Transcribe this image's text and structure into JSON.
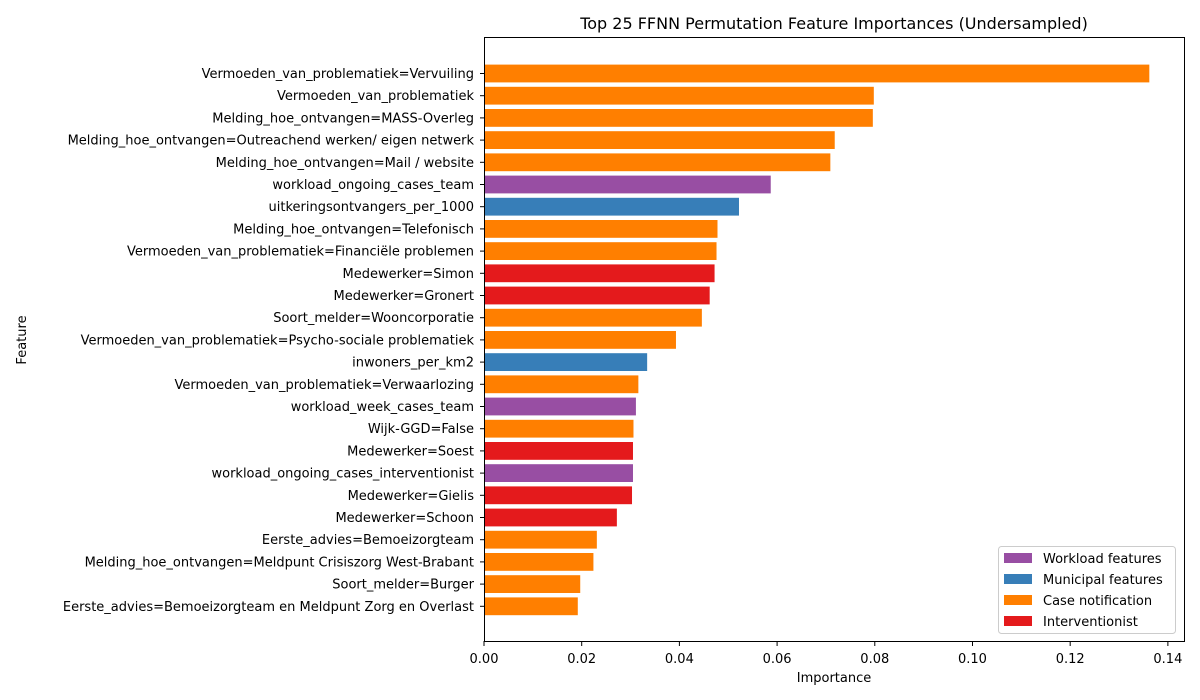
{
  "chart_data": {
    "type": "bar",
    "orientation": "horizontal",
    "title": "Top 25 FFNN Permutation Feature Importances (Undersampled)",
    "xlabel": "Importance",
    "ylabel": "Feature",
    "xlim": [
      0,
      0.1433
    ],
    "xticks": [
      "0.00",
      "0.02",
      "0.04",
      "0.06",
      "0.08",
      "0.10",
      "0.12",
      "0.14"
    ],
    "grid": false,
    "legend_position": "lower-right",
    "groups": {
      "workload": {
        "label": "Workload features",
        "color": "#984ea3"
      },
      "municipal": {
        "label": "Municipal features",
        "color": "#377eb8"
      },
      "case": {
        "label": "Case notification",
        "color": "#ff7f00"
      },
      "interventionist": {
        "label": "Interventionist",
        "color": "#e41a1c"
      }
    },
    "legend_order": [
      "workload",
      "municipal",
      "case",
      "interventionist"
    ],
    "bars": [
      {
        "feature": "Vermoeden_van_problematiek=Vervuiling",
        "value": 0.1362,
        "group": "case"
      },
      {
        "feature": "Vermoeden_van_problematiek",
        "value": 0.0798,
        "group": "case"
      },
      {
        "feature": "Melding_hoe_ontvangen=MASS-Overleg",
        "value": 0.0796,
        "group": "case"
      },
      {
        "feature": "Melding_hoe_ontvangen=Outreachend werken/ eigen netwerk",
        "value": 0.0718,
        "group": "case"
      },
      {
        "feature": "Melding_hoe_ontvangen=Mail / website",
        "value": 0.0709,
        "group": "case"
      },
      {
        "feature": "workload_ongoing_cases_team",
        "value": 0.0587,
        "group": "workload"
      },
      {
        "feature": "uitkeringsontvangers_per_1000",
        "value": 0.0522,
        "group": "municipal"
      },
      {
        "feature": "Melding_hoe_ontvangen=Telefonisch",
        "value": 0.0478,
        "group": "case"
      },
      {
        "feature": "Vermoeden_van_problematiek=Financiële problemen",
        "value": 0.0476,
        "group": "case"
      },
      {
        "feature": "Medewerker=Simon",
        "value": 0.0472,
        "group": "interventionist"
      },
      {
        "feature": "Medewerker=Gronert",
        "value": 0.0462,
        "group": "interventionist"
      },
      {
        "feature": "Soort_melder=Wooncorporatie",
        "value": 0.0446,
        "group": "case"
      },
      {
        "feature": "Vermoeden_van_problematiek=Psycho-sociale problematiek",
        "value": 0.0393,
        "group": "case"
      },
      {
        "feature": "inwoners_per_km2",
        "value": 0.0334,
        "group": "municipal"
      },
      {
        "feature": "Vermoeden_van_problematiek=Verwaarlozing",
        "value": 0.0316,
        "group": "case"
      },
      {
        "feature": "workload_week_cases_team",
        "value": 0.0311,
        "group": "workload"
      },
      {
        "feature": "Wijk-GGD=False",
        "value": 0.0306,
        "group": "case"
      },
      {
        "feature": "Medewerker=Soest",
        "value": 0.0305,
        "group": "interventionist"
      },
      {
        "feature": "workload_ongoing_cases_interventionist",
        "value": 0.0305,
        "group": "workload"
      },
      {
        "feature": "Medewerker=Gielis",
        "value": 0.0303,
        "group": "interventionist"
      },
      {
        "feature": "Medewerker=Schoon",
        "value": 0.0272,
        "group": "interventionist"
      },
      {
        "feature": "Eerste_advies=Bemoeizorgteam",
        "value": 0.0231,
        "group": "case"
      },
      {
        "feature": "Melding_hoe_ontvangen=Meldpunt Crisiszorg West-Brabant",
        "value": 0.0224,
        "group": "case"
      },
      {
        "feature": "Soort_melder=Burger",
        "value": 0.0197,
        "group": "case"
      },
      {
        "feature": "Eerste_advies=Bemoeizorgteam en Meldpunt Zorg en Overlast",
        "value": 0.0192,
        "group": "case"
      }
    ]
  }
}
